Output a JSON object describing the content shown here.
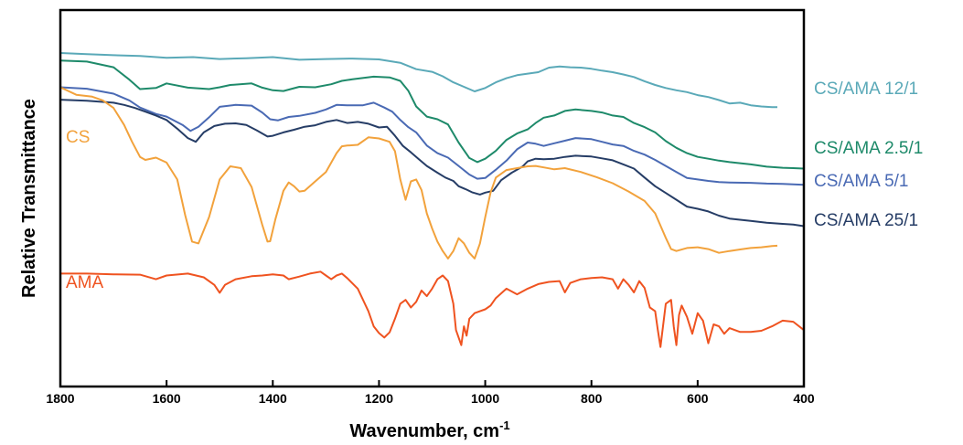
{
  "chart_data": {
    "type": "line",
    "title": "",
    "xlabel": "Wavenumber, cm",
    "xlabel_superscript": "-1",
    "ylabel": "Relative Transmittance",
    "xlim": [
      1800,
      400
    ],
    "x_reversed": true,
    "y_ticks_shown": false,
    "grid": false,
    "x_ticks": [
      "1800",
      "1600",
      "1400",
      "1200",
      "1000",
      "800",
      "600",
      "400"
    ],
    "series": [
      {
        "name": "CS/AMA 12/1",
        "color": "#5aa9b8",
        "x": [
          1800,
          1750,
          1700,
          1650,
          1600,
          1550,
          1500,
          1450,
          1400,
          1350,
          1300,
          1250,
          1200,
          1160,
          1130,
          1100,
          1080,
          1060,
          1040,
          1020,
          1000,
          980,
          960,
          940,
          920,
          900,
          880,
          860,
          840,
          820,
          800,
          780,
          760,
          740,
          720,
          700,
          680,
          660,
          640,
          620,
          600,
          580,
          560,
          540,
          520,
          500,
          480,
          460,
          450
        ],
        "y": [
          88.6,
          88.3,
          88.0,
          87.8,
          87.3,
          87.5,
          87.0,
          87.2,
          87.5,
          86.8,
          87.0,
          87.1,
          86.9,
          86.0,
          84.3,
          83.6,
          82.4,
          80.8,
          79.6,
          78.4,
          79.3,
          80.8,
          81.9,
          82.7,
          83.1,
          83.5,
          84.7,
          85.0,
          84.8,
          84.7,
          84.4,
          83.9,
          83.5,
          82.9,
          82.2,
          81.1,
          80.1,
          79.3,
          78.7,
          78.2,
          77.4,
          76.9,
          76.1,
          75.2,
          75.4,
          74.7,
          74.4,
          74.2,
          74.2
        ]
      },
      {
        "name": "CS/AMA 2.5/1",
        "color": "#1e8a6a",
        "x": [
          1800,
          1750,
          1700,
          1670,
          1650,
          1620,
          1600,
          1560,
          1520,
          1500,
          1480,
          1440,
          1420,
          1400,
          1380,
          1350,
          1320,
          1290,
          1270,
          1250,
          1210,
          1180,
          1160,
          1145,
          1130,
          1110,
          1090,
          1070,
          1050,
          1030,
          1015,
          1000,
          980,
          960,
          940,
          920,
          905,
          890,
          870,
          850,
          830,
          800,
          780,
          760,
          740,
          720,
          700,
          680,
          660,
          640,
          620,
          600,
          580,
          560,
          540,
          500,
          470,
          440,
          420,
          400
        ],
        "y": [
          86.6,
          86.3,
          84.8,
          81.5,
          79.0,
          79.3,
          80.5,
          79.4,
          79.0,
          79.5,
          80.1,
          80.5,
          79.4,
          78.7,
          78.5,
          79.6,
          79.5,
          80.3,
          81.2,
          81.6,
          82.3,
          82.1,
          81.2,
          78.6,
          74.4,
          71.7,
          71.0,
          69.6,
          64.8,
          60.7,
          59.6,
          60.5,
          62.6,
          65.5,
          67.2,
          68.3,
          70.0,
          71.4,
          72.0,
          73.2,
          73.6,
          73.2,
          72.8,
          72.0,
          71.6,
          70.0,
          68.9,
          67.5,
          65.2,
          63.4,
          62.0,
          61.0,
          60.5,
          60.0,
          59.6,
          59.0,
          58.4,
          58.1,
          58.0,
          57.9
        ]
      },
      {
        "name": "CS/AMA 5/1",
        "color": "#4a6ab4",
        "x": [
          1800,
          1750,
          1700,
          1670,
          1650,
          1620,
          1600,
          1570,
          1555,
          1540,
          1520,
          1500,
          1470,
          1440,
          1420,
          1405,
          1390,
          1370,
          1350,
          1320,
          1300,
          1280,
          1260,
          1230,
          1210,
          1190,
          1175,
          1160,
          1145,
          1130,
          1110,
          1090,
          1070,
          1050,
          1030,
          1015,
          1000,
          980,
          960,
          940,
          920,
          905,
          890,
          870,
          850,
          830,
          800,
          780,
          760,
          740,
          720,
          700,
          680,
          660,
          640,
          620,
          600,
          580,
          560,
          540,
          500,
          470,
          440,
          420,
          400
        ],
        "y": [
          79.5,
          79.1,
          77.8,
          76.0,
          74.1,
          72.4,
          71.7,
          69.5,
          67.9,
          69.0,
          71.5,
          74.3,
          74.8,
          74.6,
          72.8,
          71.0,
          70.7,
          71.6,
          71.9,
          72.7,
          73.6,
          74.8,
          74.7,
          74.7,
          75.4,
          74.1,
          73.0,
          70.8,
          68.9,
          67.5,
          64.0,
          62.0,
          60.8,
          58.6,
          56.3,
          55.2,
          55.4,
          57.6,
          60.0,
          63.0,
          64.8,
          64.5,
          63.9,
          64.6,
          65.3,
          66.0,
          65.7,
          65.0,
          64.3,
          63.9,
          62.6,
          61.6,
          60.2,
          58.6,
          57.0,
          55.4,
          55.0,
          54.6,
          54.3,
          54.2,
          54.1,
          53.9,
          53.8,
          53.7,
          53.6
        ]
      },
      {
        "name": "CS/AMA 25/1",
        "color": "#263d66",
        "x": [
          1800,
          1750,
          1700,
          1680,
          1660,
          1640,
          1620,
          1600,
          1580,
          1560,
          1545,
          1530,
          1510,
          1490,
          1470,
          1450,
          1430,
          1410,
          1400,
          1380,
          1360,
          1340,
          1320,
          1300,
          1280,
          1260,
          1240,
          1220,
          1200,
          1185,
          1170,
          1155,
          1140,
          1125,
          1110,
          1090,
          1075,
          1060,
          1050,
          1035,
          1025,
          1010,
          1000,
          985,
          970,
          950,
          930,
          920,
          905,
          890,
          870,
          850,
          830,
          800,
          780,
          760,
          740,
          720,
          700,
          680,
          660,
          640,
          620,
          600,
          580,
          560,
          540,
          520,
          500,
          470,
          440,
          420,
          400
        ],
        "y": [
          76.2,
          75.9,
          75.4,
          74.8,
          74.0,
          73.0,
          72.0,
          70.8,
          68.5,
          66.0,
          65.0,
          67.5,
          69.2,
          69.8,
          69.9,
          69.5,
          68.0,
          66.4,
          66.6,
          67.5,
          68.2,
          69.0,
          69.4,
          70.3,
          70.8,
          70.0,
          70.3,
          69.8,
          68.8,
          69.0,
          66.6,
          63.9,
          62.2,
          60.4,
          58.6,
          56.8,
          55.5,
          54.6,
          53.2,
          52.3,
          51.6,
          51.0,
          51.5,
          52.0,
          54.8,
          56.8,
          58.4,
          59.8,
          60.5,
          60.4,
          60.5,
          61.0,
          61.3,
          61.1,
          60.6,
          60.1,
          59.0,
          57.9,
          55.5,
          53.2,
          51.4,
          49.6,
          47.8,
          47.2,
          46.5,
          45.4,
          44.6,
          44.3,
          44.0,
          43.5,
          43.2,
          43.0,
          42.6
        ]
      },
      {
        "name": "CS",
        "color": "#f2a23c",
        "x": [
          1800,
          1770,
          1740,
          1720,
          1700,
          1680,
          1665,
          1650,
          1640,
          1620,
          1600,
          1580,
          1565,
          1552,
          1540,
          1520,
          1500,
          1480,
          1460,
          1440,
          1420,
          1410,
          1405,
          1395,
          1380,
          1370,
          1360,
          1350,
          1340,
          1320,
          1300,
          1280,
          1270,
          1260,
          1240,
          1220,
          1200,
          1180,
          1170,
          1160,
          1150,
          1140,
          1130,
          1120,
          1110,
          1100,
          1090,
          1080,
          1070,
          1060,
          1050,
          1040,
          1030,
          1020,
          1010,
          1000,
          990,
          980,
          960,
          940,
          920,
          905,
          890,
          870,
          850,
          820,
          790,
          760,
          730,
          700,
          680,
          660,
          650,
          640,
          620,
          600,
          580,
          560,
          540,
          520,
          500,
          480,
          460,
          450
        ],
        "y": [
          79.5,
          77.5,
          77.0,
          76.0,
          74.0,
          69.5,
          65.0,
          61.0,
          60.2,
          60.8,
          59.5,
          55.0,
          45.5,
          38.5,
          38.0,
          45.0,
          55.0,
          58.5,
          58.0,
          53.0,
          43.0,
          38.5,
          38.6,
          44.5,
          52.0,
          54.2,
          53.2,
          51.8,
          52.0,
          54.5,
          57.0,
          62.0,
          63.8,
          64.0,
          64.2,
          66.2,
          65.9,
          65.0,
          62.5,
          55.0,
          49.6,
          54.5,
          55.0,
          52.2,
          46.0,
          42.0,
          38.5,
          36.0,
          34.0,
          36.0,
          39.4,
          38.0,
          35.5,
          34.0,
          38.0,
          45.0,
          51.5,
          55.5,
          57.5,
          58.0,
          58.5,
          58.6,
          58.2,
          57.7,
          58.0,
          57.0,
          55.6,
          54.0,
          51.8,
          49.3,
          46.0,
          39.5,
          36.5,
          36.0,
          36.8,
          37.0,
          36.5,
          35.5,
          36.0,
          36.4,
          36.8,
          37.0,
          37.3,
          37.4
        ]
      },
      {
        "name": "AMA",
        "color": "#ef5320",
        "x": [
          1800,
          1750,
          1700,
          1650,
          1620,
          1600,
          1560,
          1530,
          1510,
          1500,
          1490,
          1470,
          1440,
          1420,
          1400,
          1380,
          1370,
          1350,
          1330,
          1310,
          1300,
          1290,
          1280,
          1270,
          1260,
          1240,
          1220,
          1210,
          1200,
          1190,
          1180,
          1170,
          1160,
          1150,
          1140,
          1130,
          1120,
          1110,
          1100,
          1090,
          1080,
          1070,
          1060,
          1055,
          1050,
          1045,
          1040,
          1035,
          1030,
          1020,
          1010,
          1000,
          990,
          980,
          960,
          940,
          920,
          900,
          880,
          860,
          850,
          840,
          820,
          800,
          780,
          760,
          750,
          740,
          730,
          720,
          710,
          700,
          690,
          680,
          675,
          670,
          660,
          650,
          645,
          640,
          635,
          630,
          620,
          610,
          600,
          590,
          580,
          570,
          560,
          550,
          540,
          520,
          500,
          480,
          460,
          440,
          420,
          400
        ],
        "y": [
          30.0,
          30.0,
          29.8,
          29.7,
          28.5,
          29.5,
          30.0,
          29.0,
          27.0,
          24.9,
          27.0,
          28.5,
          29.3,
          29.5,
          29.8,
          29.5,
          28.5,
          29.2,
          30.0,
          30.5,
          29.5,
          28.5,
          29.5,
          30.0,
          28.8,
          26.0,
          20.0,
          16.0,
          14.2,
          13.0,
          14.4,
          18.0,
          22.0,
          23.0,
          21.0,
          22.5,
          25.5,
          24.0,
          26.0,
          28.5,
          29.5,
          28.0,
          22.0,
          15.0,
          13.0,
          11.0,
          16.0,
          13.5,
          18.0,
          19.5,
          20.0,
          20.5,
          21.5,
          23.5,
          26.0,
          24.5,
          26.0,
          27.2,
          27.8,
          28.0,
          25.0,
          27.5,
          28.5,
          28.8,
          29.0,
          28.5,
          26.0,
          28.5,
          27.0,
          25.0,
          28.0,
          26.2,
          21.0,
          20.0,
          15.0,
          10.5,
          22.0,
          23.0,
          16.0,
          11.0,
          19.0,
          21.5,
          18.5,
          14.0,
          19.5,
          17.5,
          11.5,
          16.5,
          16.0,
          14.0,
          15.5,
          14.5,
          14.5,
          14.8,
          16.0,
          17.5,
          17.2,
          15.0
        ]
      }
    ]
  }
}
